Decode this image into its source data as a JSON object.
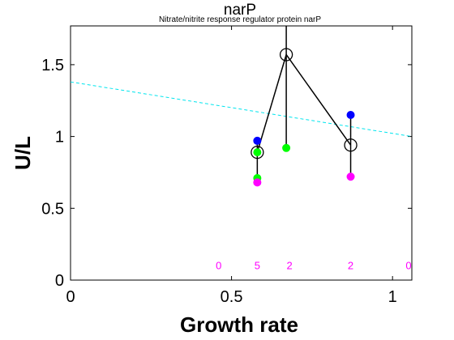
{
  "chart_data": {
    "type": "scatter",
    "title": "narP",
    "subtitle": "Nitrate/nitrite response regulator protein narP",
    "xlabel": "Growth rate",
    "ylabel": "U/L",
    "xlim": [
      0,
      1.06
    ],
    "ylim": [
      0,
      1.77
    ],
    "xticks": [
      0,
      0.5,
      1
    ],
    "xtick_labels": [
      "0",
      "0.5",
      "1"
    ],
    "yticks": [
      0,
      0.5,
      1,
      1.5
    ],
    "ytick_labels": [
      "0",
      "0.5",
      "1",
      "1.5"
    ],
    "grid": false,
    "fit_line": {
      "color": "#00e5ee",
      "style": "dashed",
      "x": [
        0,
        1.06
      ],
      "y": [
        1.38,
        1.0
      ]
    },
    "mean_line": {
      "color": "#000000",
      "x": [
        0.58,
        0.67,
        0.87
      ],
      "y": [
        0.89,
        1.57,
        0.94
      ]
    },
    "vertical_lines": [
      {
        "x": 0.58,
        "y": [
          0.71,
          0.97
        ]
      },
      {
        "x": 0.67,
        "y": [
          0.92,
          1.77
        ]
      },
      {
        "x": 0.87,
        "y": [
          0.72,
          1.15
        ]
      }
    ],
    "series": [
      {
        "color": "#0000ff",
        "x": [
          0.58,
          0.87
        ],
        "y": [
          0.97,
          1.15
        ]
      },
      {
        "color": "#00ff00",
        "x": [
          0.58,
          0.58,
          0.67
        ],
        "y": [
          0.89,
          0.71,
          0.92
        ]
      },
      {
        "color": "#ff00ff",
        "x": [
          0.58,
          0.87
        ],
        "y": [
          0.68,
          0.72
        ]
      }
    ],
    "counts": {
      "color": "#ff00ff",
      "y": 0.1,
      "x": [
        0.46,
        0.58,
        0.68,
        0.87,
        1.05
      ],
      "labels": [
        "0",
        "5",
        "2",
        "2",
        "0"
      ]
    }
  }
}
